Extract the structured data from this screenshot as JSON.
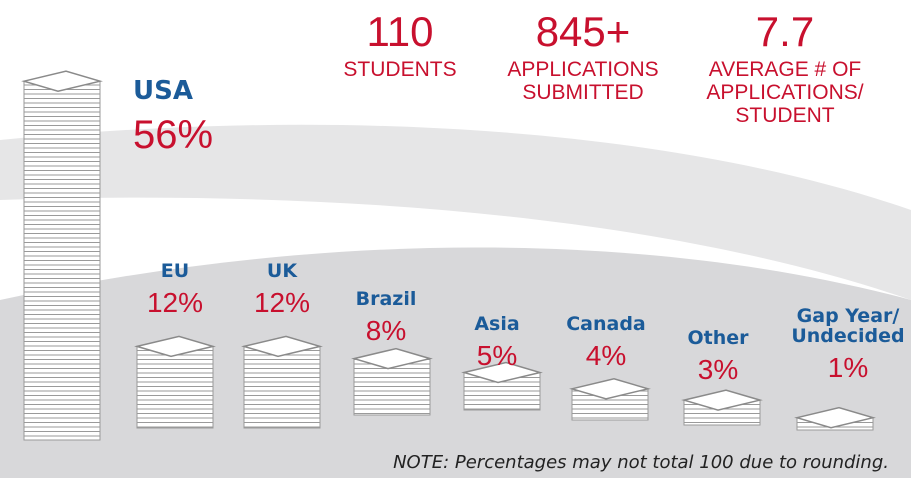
{
  "chart_data": {
    "type": "stack",
    "categories": [
      "USA",
      "EU",
      "UK",
      "Brazil",
      "Asia",
      "Canada",
      "Other",
      "Gap Year/ Undecided"
    ],
    "values": [
      56,
      12,
      12,
      8,
      5,
      4,
      3,
      1
    ],
    "value_labels": [
      "56%",
      "12%",
      "12%",
      "8%",
      "5%",
      "4%",
      "3%",
      "1%"
    ],
    "name_color": "#1b5b99",
    "value_color": "#c8102e",
    "stats": [
      {
        "figure": "110",
        "label": "STUDENTS"
      },
      {
        "figure": "845+",
        "label": "APPLICATIONS SUBMITTED"
      },
      {
        "figure": "7.7",
        "label": "AVERAGE # OF APPLICATIONS/ STUDENT"
      }
    ],
    "note": "NOTE: Percentages may not total 100 due to rounding."
  }
}
